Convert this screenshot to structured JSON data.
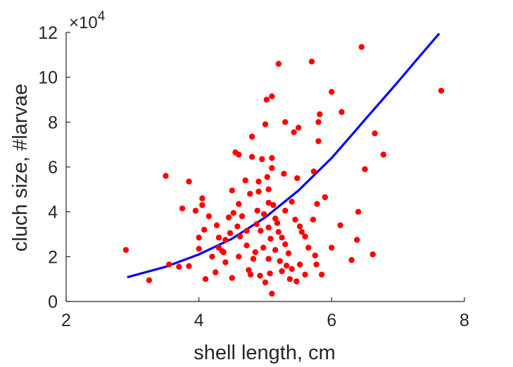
{
  "chart_data": {
    "type": "scatter",
    "title": "",
    "xlabel": "shell length, cm",
    "ylabel": "cluch size, #larvae",
    "xlim": [
      2,
      8
    ],
    "ylim": [
      0,
      120000
    ],
    "xticks": [
      2,
      4,
      6,
      8
    ],
    "yticks": [
      0,
      20000,
      40000,
      60000,
      80000,
      100000,
      120000
    ],
    "xtick_labels": [
      "2",
      "4",
      "6",
      "8"
    ],
    "ytick_labels": [
      "0",
      "2",
      "4",
      "6",
      "8",
      "10",
      "12"
    ],
    "y_multiplier_label": "×10",
    "y_multiplier_exponent": "4",
    "grid": false,
    "series": [
      {
        "kind": "scatter",
        "color": "#ff0000",
        "points": [
          [
            2.9,
            23000
          ],
          [
            3.25,
            9500
          ],
          [
            3.5,
            56000
          ],
          [
            3.55,
            16500
          ],
          [
            3.7,
            15500
          ],
          [
            3.75,
            41500
          ],
          [
            3.85,
            15800
          ],
          [
            3.85,
            53500
          ],
          [
            3.95,
            40500
          ],
          [
            4.0,
            28500
          ],
          [
            4.0,
            23500
          ],
          [
            4.05,
            46000
          ],
          [
            4.05,
            43000
          ],
          [
            4.08,
            32000
          ],
          [
            4.1,
            10000
          ],
          [
            4.15,
            38000
          ],
          [
            4.2,
            20000
          ],
          [
            4.25,
            13000
          ],
          [
            4.27,
            34000
          ],
          [
            4.3,
            28500
          ],
          [
            4.3,
            24000
          ],
          [
            4.35,
            22500
          ],
          [
            4.37,
            22000
          ],
          [
            4.4,
            17500
          ],
          [
            4.4,
            27500
          ],
          [
            4.45,
            37500
          ],
          [
            4.47,
            30500
          ],
          [
            4.5,
            10500
          ],
          [
            4.5,
            49500
          ],
          [
            4.52,
            39500
          ],
          [
            4.55,
            66500
          ],
          [
            4.58,
            33500
          ],
          [
            4.6,
            65500
          ],
          [
            4.6,
            43500
          ],
          [
            4.6,
            20000
          ],
          [
            4.62,
            29000
          ],
          [
            4.65,
            38000
          ],
          [
            4.7,
            54000
          ],
          [
            4.72,
            31500
          ],
          [
            4.72,
            25000
          ],
          [
            4.75,
            14000
          ],
          [
            4.77,
            48000
          ],
          [
            4.78,
            12000
          ],
          [
            4.8,
            64500
          ],
          [
            4.8,
            73500
          ],
          [
            4.82,
            19000
          ],
          [
            4.85,
            22000
          ],
          [
            4.87,
            34500
          ],
          [
            4.88,
            40500
          ],
          [
            4.9,
            53500
          ],
          [
            4.9,
            49000
          ],
          [
            4.92,
            11500
          ],
          [
            4.93,
            31500
          ],
          [
            4.95,
            63500
          ],
          [
            4.97,
            24000
          ],
          [
            4.98,
            39000
          ],
          [
            5.0,
            79000
          ],
          [
            5.0,
            8500
          ],
          [
            5.02,
            90000
          ],
          [
            5.03,
            55500
          ],
          [
            5.05,
            50000
          ],
          [
            5.05,
            44000
          ],
          [
            5.05,
            33000
          ],
          [
            5.05,
            19000
          ],
          [
            5.07,
            12500
          ],
          [
            5.08,
            28000
          ],
          [
            5.1,
            91500
          ],
          [
            5.1,
            59500
          ],
          [
            5.1,
            64000
          ],
          [
            5.1,
            3500
          ],
          [
            5.12,
            43000
          ],
          [
            5.15,
            37000
          ],
          [
            5.15,
            23000
          ],
          [
            5.18,
            35000
          ],
          [
            5.2,
            106000
          ],
          [
            5.2,
            31000
          ],
          [
            5.22,
            18000
          ],
          [
            5.25,
            28500
          ],
          [
            5.25,
            13500
          ],
          [
            5.28,
            57000
          ],
          [
            5.3,
            80000
          ],
          [
            5.3,
            40500
          ],
          [
            5.3,
            25500
          ],
          [
            5.32,
            16000
          ],
          [
            5.35,
            21500
          ],
          [
            5.37,
            10000
          ],
          [
            5.4,
            44500
          ],
          [
            5.4,
            14500
          ],
          [
            5.43,
            75500
          ],
          [
            5.45,
            36500
          ],
          [
            5.47,
            9000
          ],
          [
            5.48,
            55000
          ],
          [
            5.5,
            77500
          ],
          [
            5.52,
            33500
          ],
          [
            5.52,
            16500
          ],
          [
            5.55,
            31000
          ],
          [
            5.6,
            29000
          ],
          [
            5.6,
            12000
          ],
          [
            5.65,
            24000
          ],
          [
            5.7,
            107000
          ],
          [
            5.72,
            36500
          ],
          [
            5.73,
            58000
          ],
          [
            5.75,
            20500
          ],
          [
            5.77,
            16500
          ],
          [
            5.78,
            43500
          ],
          [
            5.8,
            71500
          ],
          [
            5.8,
            80000
          ],
          [
            5.82,
            83500
          ],
          [
            5.85,
            12000
          ],
          [
            5.9,
            46500
          ],
          [
            6.0,
            93500
          ],
          [
            6.0,
            24000
          ],
          [
            6.13,
            34000
          ],
          [
            6.15,
            84500
          ],
          [
            6.3,
            18500
          ],
          [
            6.38,
            27500
          ],
          [
            6.4,
            40000
          ],
          [
            6.45,
            113500
          ],
          [
            6.5,
            59000
          ],
          [
            6.62,
            21000
          ],
          [
            6.65,
            75000
          ],
          [
            6.78,
            65500
          ],
          [
            7.65,
            94000
          ]
        ]
      },
      {
        "kind": "fit-curve",
        "color": "#0000ff",
        "x_range": [
          2.92,
          7.62
        ],
        "points": [
          [
            2.92,
            10800
          ],
          [
            3.5,
            15500
          ],
          [
            4.0,
            21000
          ],
          [
            4.5,
            28000
          ],
          [
            5.0,
            37500
          ],
          [
            5.5,
            49500
          ],
          [
            6.0,
            64000
          ],
          [
            6.5,
            81000
          ],
          [
            7.0,
            98000
          ],
          [
            7.3,
            108500
          ],
          [
            7.62,
            119500
          ]
        ]
      }
    ]
  }
}
